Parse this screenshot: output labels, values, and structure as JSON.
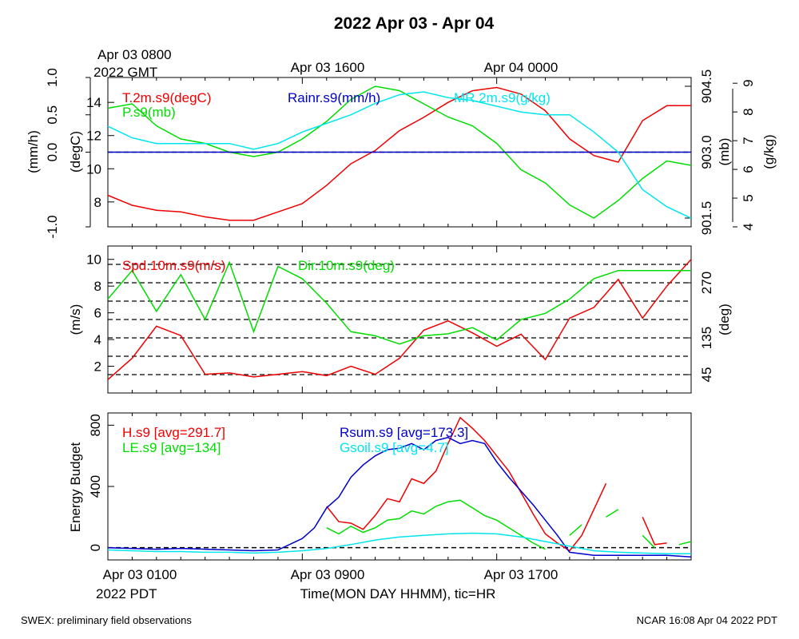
{
  "title": "2022 Apr 03 - Apr 04",
  "top_time_labels": {
    "start": "Apr 03 0800",
    "start_zone": "2022 GMT",
    "mid": "Apr 03 1600",
    "end": "Apr 04 0000"
  },
  "bottom_time_labels": {
    "start": "Apr 03 0100",
    "start_zone": "2022 PDT",
    "mid": "Apr 03 0900",
    "end": "Apr 03 1700"
  },
  "xlabel": "Time(MON DAY HHMM), tic=HR",
  "footer_left": "SWEX: preliminary field observations",
  "footer_right": "NCAR 16:08 Apr 04 2022 PDT",
  "colors": {
    "red": "#ee0000",
    "green": "#00dd00",
    "blue": "#0000cc",
    "cyan": "#00e5ee",
    "black": "#000000"
  },
  "chart_data": [
    {
      "type": "line",
      "panel": "meteorology",
      "x_units": "hours since Apr 03 0100 PDT",
      "xlim": [
        0,
        24
      ],
      "axes": {
        "left_outer": {
          "label": "(mm/h)",
          "range": [
            -1.0,
            1.0
          ],
          "ticks": [
            "-1.0",
            "0.0",
            "0.5",
            "1.0"
          ],
          "tick_values": [
            -1.0,
            0.0,
            0.5,
            1.0
          ]
        },
        "left_inner": {
          "label": "(degC)",
          "range": [
            6.5,
            15.5
          ],
          "ticks": [
            "8",
            "10",
            "12",
            "14"
          ],
          "tick_values": [
            8,
            10,
            12,
            14
          ]
        },
        "right_inner": {
          "label": "(mb)",
          "range": [
            901.3,
            904.7
          ],
          "ticks": [
            "901.5",
            "903.0",
            "904.5"
          ],
          "tick_values": [
            901.5,
            903.0,
            904.5
          ]
        },
        "right_outer": {
          "label": "(g/kg)",
          "range": [
            4,
            9.2
          ],
          "ticks": [
            "4",
            "5",
            "6",
            "7",
            "8",
            "9"
          ],
          "tick_values": [
            4,
            5,
            6,
            7,
            8,
            9
          ]
        }
      },
      "zero_line": "0.0 mm/h",
      "series": [
        {
          "name": "T.2m.s9(degC)",
          "color": "red",
          "axis": "left_inner",
          "x": [
            0,
            1,
            2,
            3,
            4,
            5,
            6,
            7,
            8,
            9,
            10,
            11,
            12,
            13,
            14,
            15,
            16,
            17,
            18,
            19,
            20,
            21,
            22,
            23,
            24
          ],
          "values": [
            8.4,
            7.8,
            7.5,
            7.4,
            7.1,
            6.9,
            6.9,
            7.4,
            7.9,
            9.0,
            10.3,
            11.1,
            12.3,
            13.1,
            14.0,
            14.7,
            14.9,
            14.5,
            13.5,
            11.8,
            10.8,
            10.4,
            12.9,
            13.8,
            13.8
          ]
        },
        {
          "name": "P.s9(mb)",
          "color": "green",
          "axis": "right_inner",
          "x": [
            0,
            1,
            2,
            3,
            4,
            5,
            6,
            7,
            8,
            9,
            10,
            11,
            12,
            13,
            14,
            15,
            16,
            17,
            18,
            19,
            20,
            21,
            22,
            23,
            24
          ],
          "values": [
            904.0,
            904.1,
            903.6,
            903.3,
            903.2,
            903.0,
            902.9,
            903.0,
            903.3,
            903.7,
            904.2,
            904.5,
            904.4,
            904.1,
            903.8,
            903.6,
            903.2,
            902.6,
            902.3,
            901.8,
            901.5,
            901.9,
            902.4,
            902.8,
            902.7
          ]
        },
        {
          "name": "Rainr.s9(mm/h)",
          "color": "blue",
          "axis": "left_outer",
          "x": [
            0,
            24
          ],
          "values": [
            0,
            0
          ]
        },
        {
          "name": "MR.2m.s9(g/kg)",
          "color": "cyan",
          "axis": "right_outer",
          "x": [
            0,
            1,
            2,
            3,
            4,
            5,
            6,
            7,
            8,
            9,
            10,
            11,
            12,
            13,
            14,
            15,
            16,
            17,
            18,
            19,
            20,
            21,
            22,
            23,
            24
          ],
          "values": [
            7.5,
            7.1,
            6.9,
            6.9,
            6.9,
            6.9,
            6.7,
            6.9,
            7.3,
            7.6,
            7.9,
            8.3,
            8.6,
            8.7,
            8.5,
            8.4,
            8.2,
            8.0,
            7.9,
            7.9,
            7.3,
            6.6,
            5.3,
            4.7,
            4.3
          ]
        }
      ]
    },
    {
      "type": "line",
      "panel": "wind",
      "x_units": "hours since Apr 03 0100 PDT",
      "xlim": [
        0,
        24
      ],
      "axes": {
        "left": {
          "label": "(m/s)",
          "range": [
            0,
            11
          ],
          "ticks": [
            "2",
            "4",
            "6",
            "8",
            "10"
          ],
          "tick_values": [
            2,
            4,
            6,
            8,
            10
          ]
        },
        "right": {
          "label": "(deg)",
          "range": [
            0,
            360
          ],
          "ticks": [
            "45",
            "135",
            "270"
          ],
          "tick_values": [
            45,
            135,
            270
          ]
        }
      },
      "dashed_levels_deg": [
        45,
        90,
        135,
        180,
        225,
        270,
        315
      ],
      "series": [
        {
          "name": "Spd.10m.s9(m/s)",
          "color": "red",
          "axis": "left",
          "x": [
            0,
            1,
            2,
            3,
            4,
            5,
            6,
            7,
            8,
            9,
            10,
            11,
            12,
            13,
            14,
            15,
            16,
            17,
            18,
            19,
            20,
            21,
            22,
            23,
            24
          ],
          "values": [
            1.0,
            2.6,
            5.0,
            4.3,
            1.4,
            1.5,
            1.2,
            1.4,
            1.6,
            1.3,
            2.0,
            1.4,
            2.6,
            4.7,
            5.4,
            4.5,
            3.5,
            4.4,
            2.5,
            5.6,
            6.4,
            8.5,
            5.6,
            8.0,
            10.0
          ]
        },
        {
          "name": "Dir.10m.s9(deg)",
          "color": "green",
          "axis": "right",
          "x": [
            0,
            1,
            2,
            3,
            4,
            5,
            6,
            7,
            8,
            9,
            10,
            11,
            12,
            13,
            14,
            15,
            16,
            17,
            18,
            19,
            20,
            21,
            22,
            23,
            24
          ],
          "values": [
            230,
            300,
            200,
            290,
            180,
            320,
            150,
            310,
            280,
            220,
            150,
            140,
            120,
            140,
            145,
            160,
            130,
            180,
            195,
            230,
            280,
            300,
            300,
            300,
            300
          ]
        }
      ]
    },
    {
      "type": "line",
      "panel": "energy",
      "x_units": "hours since Apr 03 0100 PDT",
      "xlim": [
        0,
        24
      ],
      "ylabel": "Energy Budget",
      "ylim": [
        -80,
        880
      ],
      "yticks": [
        "0",
        "400",
        "800"
      ],
      "ytick_values": [
        0,
        400,
        800
      ],
      "zero_line": "0",
      "series": [
        {
          "name": "H.s9 [avg=291.7]",
          "color": "red",
          "x": [
            9,
            9.5,
            10,
            10.5,
            11,
            11.5,
            12,
            12.5,
            13,
            13.5,
            14,
            14.5,
            15,
            15.5,
            16,
            16.5,
            17,
            17.5,
            18,
            18.5,
            19,
            19.5,
            20,
            20.5,
            21,
            21.5,
            22,
            22.5,
            23
          ],
          "values": [
            270,
            170,
            160,
            120,
            210,
            320,
            300,
            450,
            420,
            500,
            680,
            850,
            780,
            700,
            600,
            500,
            360,
            220,
            90,
            30,
            -20,
            80,
            250,
            420,
            null,
            null,
            200,
            20,
            30
          ]
        },
        {
          "name": "LE.s9 [avg=134]",
          "color": "green",
          "x": [
            9,
            9.5,
            10,
            10.5,
            11,
            11.5,
            12,
            12.5,
            13,
            13.5,
            14,
            14.5,
            15,
            15.5,
            16,
            16.5,
            17,
            17.5,
            18,
            18.5,
            19,
            19.5,
            20,
            20.5,
            21,
            21.5,
            22,
            22.5,
            23,
            23.5,
            24
          ],
          "values": [
            130,
            90,
            140,
            100,
            130,
            180,
            190,
            240,
            220,
            270,
            300,
            310,
            260,
            210,
            180,
            130,
            80,
            30,
            -10,
            null,
            80,
            150,
            null,
            200,
            250,
            null,
            80,
            0,
            null,
            20,
            40
          ]
        },
        {
          "name": "Rsum.s9 [avg=173.3]",
          "color": "blue",
          "x": [
            0,
            1,
            2,
            3,
            4,
            5,
            6,
            7,
            8,
            8.5,
            9,
            9.5,
            10,
            10.5,
            11,
            11.5,
            12,
            12.5,
            13,
            13.5,
            14,
            14.5,
            15,
            15.5,
            16,
            16.5,
            17,
            17.5,
            18,
            18.5,
            19,
            20,
            21,
            22,
            23,
            24
          ],
          "values": [
            0,
            -5,
            -10,
            -5,
            -10,
            -15,
            -20,
            -15,
            60,
            130,
            260,
            330,
            460,
            540,
            600,
            640,
            650,
            680,
            640,
            700,
            720,
            680,
            700,
            680,
            560,
            460,
            370,
            280,
            180,
            80,
            -30,
            -50,
            -50,
            -50,
            -50,
            -60
          ]
        },
        {
          "name": "Gsoil.s9 [avg=4.7]",
          "color": "cyan",
          "x": [
            0,
            1,
            2,
            3,
            4,
            5,
            6,
            7,
            8,
            9,
            10,
            11,
            12,
            13,
            14,
            15,
            16,
            17,
            18,
            19,
            20,
            21,
            22,
            23,
            24
          ],
          "values": [
            -15,
            -20,
            -25,
            -25,
            -30,
            -30,
            -35,
            -30,
            -20,
            -5,
            20,
            50,
            70,
            80,
            90,
            95,
            90,
            70,
            40,
            10,
            -20,
            -30,
            -35,
            -40,
            -40
          ]
        }
      ]
    }
  ]
}
